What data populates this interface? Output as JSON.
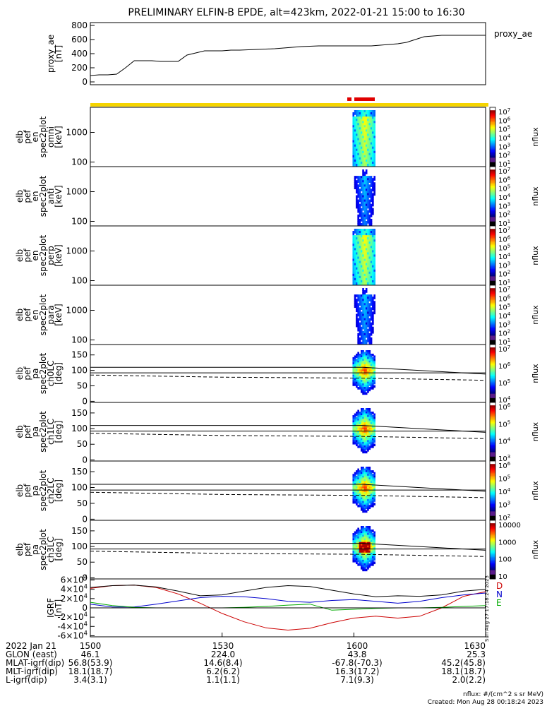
{
  "title": "PRELIMINARY ELFIN-B EPDE, alt=423km, 2022-01-21 15:00 to 16:30",
  "chart_data": [
    {
      "type": "line",
      "id": "proxy_ae",
      "ylabel_lines": [
        "proxy_ae",
        "[nT]"
      ],
      "legend": "proxy_ae",
      "ylim": [
        0,
        800
      ],
      "yticks": [
        "0",
        "200",
        "400",
        "600",
        "800"
      ],
      "series": [
        {
          "x": [
            0,
            2,
            4,
            6,
            8,
            10,
            12,
            14,
            16,
            18,
            20,
            22,
            24,
            26,
            28,
            30,
            32,
            34,
            36,
            38,
            40,
            42,
            44,
            46,
            48,
            50,
            52,
            54,
            56,
            58,
            60,
            62,
            64,
            66,
            68,
            70,
            72,
            74,
            76,
            78,
            80,
            82,
            84,
            86,
            88,
            90
          ],
          "y": [
            90,
            100,
            100,
            110,
            200,
            300,
            300,
            300,
            290,
            290,
            290,
            380,
            410,
            440,
            440,
            440,
            450,
            450,
            455,
            460,
            465,
            470,
            480,
            490,
            500,
            505,
            510,
            510,
            510,
            510,
            510,
            510,
            510,
            520,
            530,
            540,
            560,
            600,
            640,
            650,
            660,
            660,
            660,
            660,
            660,
            660
          ]
        }
      ]
    },
    {
      "type": "heatmap",
      "id": "spec_omni",
      "ylabel_lines": [
        "elb",
        "pef",
        "en",
        "spec2plot",
        "omni",
        "[keV]"
      ],
      "yscale": "log",
      "yticks": [
        "100",
        "1000"
      ],
      "colorbar_label": "nflux",
      "colorbar_ticks": [
        "10^7",
        "10^6",
        "10^5",
        "10^4",
        "10^3",
        "10^2",
        "10^1"
      ]
    },
    {
      "type": "heatmap",
      "id": "spec_anti",
      "ylabel_lines": [
        "elb",
        "pef",
        "en",
        "spec2plot",
        "anti",
        "[keV]"
      ],
      "yscale": "log",
      "yticks": [
        "100",
        "1000"
      ],
      "colorbar_label": "nflux",
      "colorbar_ticks": [
        "10^7",
        "10^6",
        "10^5",
        "10^4",
        "10^3",
        "10^2",
        "10^1"
      ]
    },
    {
      "type": "heatmap",
      "id": "spec_perp",
      "ylabel_lines": [
        "elb",
        "pef",
        "en",
        "spec2plot",
        "perp",
        "[keV]"
      ],
      "yscale": "log",
      "yticks": [
        "100",
        "1000"
      ],
      "colorbar_label": "nflux",
      "colorbar_ticks": [
        "10^7",
        "10^6",
        "10^5",
        "10^4",
        "10^3",
        "10^2",
        "10^1"
      ]
    },
    {
      "type": "heatmap",
      "id": "spec_para",
      "ylabel_lines": [
        "elb",
        "pef",
        "en",
        "spec2plot",
        "para",
        "[keV]"
      ],
      "yscale": "log",
      "yticks": [
        "100",
        "1000"
      ],
      "colorbar_label": "nflux",
      "colorbar_ticks": [
        "10^7",
        "10^6",
        "10^5",
        "10^4",
        "10^3",
        "10^2",
        "10^1"
      ]
    },
    {
      "type": "heatmap",
      "id": "pa_ch0",
      "ylabel_lines": [
        "elb",
        "pef",
        "pa",
        "spec2plot",
        "ch0LC",
        "[deg]"
      ],
      "ylim": [
        0,
        180
      ],
      "yticks": [
        "0",
        "50",
        "100",
        "150"
      ],
      "colorbar_label": "nflux",
      "colorbar_ticks": [
        "10^7",
        "10^6",
        "10^5",
        "10^4"
      ]
    },
    {
      "type": "heatmap",
      "id": "pa_ch1",
      "ylabel_lines": [
        "elb",
        "pef",
        "pa",
        "spec2plot",
        "ch1LC",
        "[deg]"
      ],
      "ylim": [
        0,
        180
      ],
      "yticks": [
        "0",
        "50",
        "100",
        "150"
      ],
      "colorbar_label": "nflux",
      "colorbar_ticks": [
        "10^6",
        "10^5",
        "10^4",
        "10^3"
      ]
    },
    {
      "type": "heatmap",
      "id": "pa_ch2",
      "ylabel_lines": [
        "elb",
        "pef",
        "pa",
        "spec2plot",
        "ch2LC",
        "[deg]"
      ],
      "ylim": [
        0,
        180
      ],
      "yticks": [
        "0",
        "50",
        "100",
        "150"
      ],
      "colorbar_label": "nflux",
      "colorbar_ticks": [
        "10^6",
        "10^5",
        "10^4",
        "10^3",
        "10^2"
      ]
    },
    {
      "type": "heatmap",
      "id": "pa_ch3",
      "ylabel_lines": [
        "elb",
        "pef",
        "pa",
        "spec2plot",
        "ch3LC",
        "[deg]"
      ],
      "ylim": [
        0,
        180
      ],
      "yticks": [
        "0",
        "50",
        "100",
        "150"
      ],
      "colorbar_label": "nflux",
      "colorbar_ticks": [
        "10000",
        "1000",
        "100",
        "10"
      ]
    },
    {
      "type": "line",
      "id": "igrf",
      "ylabel_lines": [
        "IGRF",
        "[nT]"
      ],
      "ylim": [
        -60000,
        60000
      ],
      "yticks": [
        "-6×10^4",
        "-4×10^4",
        "-2×10^4",
        "0",
        "2×10^4",
        "4×10^4",
        "6×10^4"
      ],
      "legend": [
        "D",
        "N",
        "E"
      ],
      "colors": [
        "#cc0000",
        "#0000cc",
        "#00aa00"
      ],
      "series": [
        {
          "name": "D",
          "x": [
            0,
            5,
            10,
            15,
            20,
            25,
            30,
            35,
            40,
            45,
            50,
            55,
            60,
            65,
            70,
            75,
            80,
            85,
            90
          ],
          "y": [
            42000,
            48000,
            49000,
            44000,
            30000,
            10000,
            -12000,
            -30000,
            -43000,
            -48000,
            -44000,
            -32000,
            -22000,
            -18000,
            -22000,
            -18000,
            0,
            25000,
            35000
          ]
        },
        {
          "name": "N",
          "x": [
            0,
            5,
            10,
            15,
            20,
            25,
            30,
            35,
            40,
            45,
            50,
            55,
            60,
            65,
            70,
            75,
            80,
            85,
            90
          ],
          "y": [
            8000,
            2000,
            2000,
            8000,
            15000,
            22000,
            25000,
            24000,
            20000,
            14000,
            12000,
            16000,
            18000,
            14000,
            10000,
            14000,
            22000,
            28000,
            32000
          ]
        },
        {
          "name": "E",
          "x": [
            0,
            5,
            10,
            15,
            20,
            25,
            30,
            35,
            40,
            45,
            50,
            55,
            60,
            65,
            70,
            75,
            80,
            85,
            90
          ],
          "y": [
            12000,
            5000,
            1000,
            0,
            0,
            0,
            0,
            1000,
            3000,
            6000,
            8000,
            -5000,
            -3000,
            -1000,
            0,
            0,
            1000,
            3000,
            5000
          ]
        },
        {
          "name": "B",
          "x": [
            0,
            5,
            10,
            15,
            20,
            25,
            30,
            35,
            40,
            45,
            50,
            55,
            60,
            65,
            70,
            75,
            80,
            85,
            90
          ],
          "y": [
            44000,
            48000,
            49000,
            45000,
            36000,
            26000,
            28000,
            36000,
            44000,
            48000,
            46000,
            38000,
            30000,
            24000,
            26000,
            25000,
            28000,
            36000,
            40000
          ]
        }
      ],
      "side_note": "Sun Aug 27 17:18:24 2023"
    }
  ],
  "footer": {
    "rows": [
      [
        "2022 Jan 21",
        "1500",
        "1530",
        "1600",
        "1630"
      ],
      [
        "GLON (east)",
        "46.1",
        "224.0",
        "43.8",
        "25.3"
      ],
      [
        "MLAT-igrf(dip)",
        "56.8(53.9)",
        "14.6(8.4)",
        "-67.8(-70.3)",
        "45.2(45.8)"
      ],
      [
        "MLT-igrf(dip)",
        "18.1(18.7)",
        "6.2(6.2)",
        "16.3(17.2)",
        "18.1(18.7)"
      ],
      [
        "L-igrf(dip)",
        "3.4(3.1)",
        "1.1(1.1)",
        "7.1(9.3)",
        "2.0(2.2)"
      ]
    ],
    "units": "nflux: #/(cm^2 s sr MeV)",
    "created": "Created: Mon Aug 28 00:18:24 2023"
  },
  "colors": {
    "state_bar": "#f5d400",
    "burst_bar": "#e00000"
  }
}
